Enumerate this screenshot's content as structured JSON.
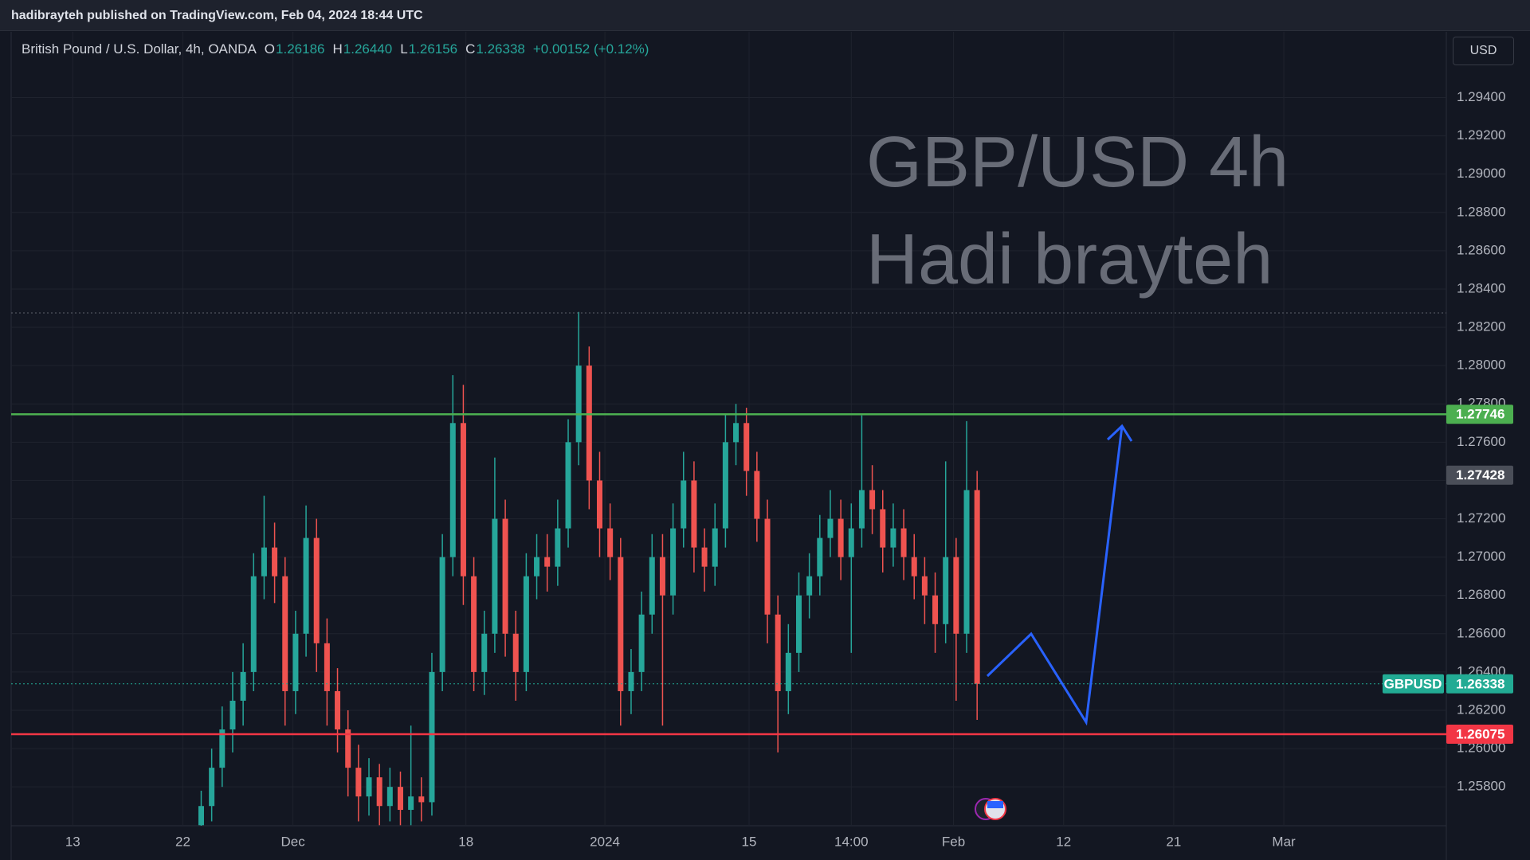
{
  "top_bar": {
    "text": "hadibrayteh published on TradingView.com, Feb 04, 2024 18:44 UTC"
  },
  "currency_button": "USD",
  "chart_data": {
    "type": "candlestick",
    "symbol": "British Pound / U.S. Dollar, 4h, OANDA",
    "ohlc_labels": [
      "O",
      "H",
      "L",
      "C"
    ],
    "ohlc_values": [
      1.26186,
      {
        "value": 1.2644,
        "label": "1.26440"
      },
      1.26156,
      1.26338
    ],
    "change": "+0.00152 (+0.12%)",
    "watermark": [
      "GBP/USD 4h",
      "Hadi brayteh"
    ],
    "x": [
      49,
      53,
      57,
      61,
      65,
      69,
      73,
      77,
      81,
      85,
      89,
      93,
      97,
      101,
      105,
      109,
      113,
      117,
      121,
      125,
      129,
      133,
      137,
      141,
      145,
      149,
      153,
      157,
      161,
      165,
      169,
      173,
      177,
      181,
      185,
      189,
      193,
      197,
      201,
      205,
      209,
      213,
      217,
      221,
      225,
      229,
      233,
      237,
      241,
      245,
      249,
      253,
      257,
      261,
      265,
      269,
      273,
      277,
      281,
      285,
      289,
      293,
      297,
      301,
      305,
      309,
      313,
      317,
      321,
      325,
      329,
      333,
      337,
      341,
      345
    ],
    "open": [
      1.256,
      1.257,
      1.259,
      1.261,
      1.2625,
      1.264,
      1.269,
      1.2705,
      1.269,
      1.263,
      1.266,
      1.271,
      1.2655,
      1.263,
      1.261,
      1.259,
      1.2575,
      1.2585,
      1.257,
      1.258,
      1.2568,
      1.2575,
      1.2572,
      1.264,
      1.27,
      1.277,
      1.269,
      1.264,
      1.266,
      1.272,
      1.266,
      1.264,
      1.269,
      1.27,
      1.2695,
      1.2715,
      1.276,
      1.28,
      1.274,
      1.2715,
      1.27,
      1.263,
      1.264,
      1.267,
      1.27,
      1.268,
      1.2715,
      1.274,
      1.2705,
      1.2695,
      1.2715,
      1.276,
      1.277,
      1.2745,
      1.272,
      1.267,
      1.263,
      1.265,
      1.268,
      1.269,
      1.271,
      1.272,
      1.27,
      1.2715,
      1.2735,
      1.2725,
      1.2705,
      1.2715,
      1.27,
      1.269,
      1.268,
      1.2665,
      1.27,
      1.266,
      1.2735
    ],
    "high": [
      1.2578,
      1.26,
      1.2622,
      1.264,
      1.2655,
      1.2702,
      1.2732,
      1.2718,
      1.27,
      1.2672,
      1.2727,
      1.272,
      1.2668,
      1.2642,
      1.262,
      1.2602,
      1.2595,
      1.2592,
      1.259,
      1.2588,
      1.2612,
      1.2585,
      1.265,
      1.2712,
      1.2795,
      1.279,
      1.27,
      1.2672,
      1.2752,
      1.273,
      1.2672,
      1.2702,
      1.2712,
      1.2712,
      1.273,
      1.2772,
      1.2828,
      1.281,
      1.2755,
      1.2728,
      1.271,
      1.2652,
      1.2682,
      1.2712,
      1.2712,
      1.2728,
      1.2755,
      1.275,
      1.2715,
      1.2728,
      1.2775,
      1.278,
      1.2778,
      1.2755,
      1.273,
      1.268,
      1.2665,
      1.2692,
      1.2702,
      1.2722,
      1.2735,
      1.273,
      1.2728,
      1.2774,
      1.2748,
      1.2735,
      1.2728,
      1.2725,
      1.2712,
      1.27,
      1.2692,
      1.275,
      1.271,
      1.2771,
      1.2745
    ],
    "low": [
      1.2552,
      1.2562,
      1.258,
      1.2598,
      1.2612,
      1.263,
      1.2678,
      1.2676,
      1.2612,
      1.2618,
      1.2648,
      1.264,
      1.2612,
      1.2598,
      1.2575,
      1.2562,
      1.2565,
      1.256,
      1.2562,
      1.256,
      1.256,
      1.2562,
      1.2565,
      1.263,
      1.269,
      1.2675,
      1.263,
      1.2628,
      1.265,
      1.2648,
      1.2625,
      1.263,
      1.2678,
      1.2682,
      1.2685,
      1.2705,
      1.2748,
      1.2725,
      1.27,
      1.2688,
      1.2612,
      1.2618,
      1.263,
      1.266,
      1.2612,
      1.267,
      1.2705,
      1.2692,
      1.2682,
      1.2685,
      1.2705,
      1.2748,
      1.2732,
      1.2708,
      1.2655,
      1.2598,
      1.2618,
      1.264,
      1.2668,
      1.268,
      1.27,
      1.2688,
      1.265,
      1.2705,
      1.2712,
      1.2692,
      1.2695,
      1.2688,
      1.2678,
      1.2665,
      1.265,
      1.2655,
      1.2625,
      1.265,
      1.2615
    ],
    "close": [
      1.257,
      1.259,
      1.261,
      1.2625,
      1.264,
      1.269,
      1.2705,
      1.269,
      1.263,
      1.266,
      1.271,
      1.2655,
      1.263,
      1.261,
      1.259,
      1.2575,
      1.2585,
      1.257,
      1.258,
      1.2568,
      1.2575,
      1.2572,
      1.264,
      1.27,
      1.277,
      1.269,
      1.264,
      1.266,
      1.272,
      1.266,
      1.264,
      1.269,
      1.27,
      1.2695,
      1.2715,
      1.276,
      1.28,
      1.274,
      1.2715,
      1.27,
      1.263,
      1.264,
      1.267,
      1.27,
      1.268,
      1.2715,
      1.274,
      1.2705,
      1.2695,
      1.2715,
      1.276,
      1.277,
      1.2745,
      1.272,
      1.267,
      1.263,
      1.265,
      1.268,
      1.269,
      1.271,
      1.272,
      1.27,
      1.2715,
      1.2735,
      1.2725,
      1.2705,
      1.2715,
      1.27,
      1.269,
      1.268,
      1.2665,
      1.27,
      1.266,
      1.2735,
      1.26338
    ],
    "up_color": "#26a69a",
    "down_color": "#ef5350",
    "xlim": [
      -23.5,
      524
    ],
    "xticks": [
      {
        "value": 0,
        "label": "13"
      },
      {
        "value": 42,
        "label": "22"
      },
      {
        "value": 84,
        "label": "Dec"
      },
      {
        "value": 150,
        "label": "18"
      },
      {
        "value": 203,
        "label": "2024"
      },
      {
        "value": 258,
        "label": "15"
      },
      {
        "value": 297,
        "label": "14:00"
      },
      {
        "value": 336,
        "label": "Feb"
      },
      {
        "value": 378,
        "label": "12"
      },
      {
        "value": 420,
        "label": "21"
      },
      {
        "value": 462,
        "label": "Mar"
      }
    ],
    "ylim": [
      1.25597,
      1.29743
    ],
    "yticks": [
      {
        "value": 1.258,
        "label": "1.25800"
      },
      {
        "value": 1.26,
        "label": "1.26000"
      },
      {
        "value": 1.262,
        "label": "1.26200"
      },
      {
        "value": 1.264,
        "label": "1.26400"
      },
      {
        "value": 1.266,
        "label": "1.26600"
      },
      {
        "value": 1.268,
        "label": "1.26800"
      },
      {
        "value": 1.27,
        "label": "1.27000"
      },
      {
        "value": 1.272,
        "label": "1.27200"
      },
      {
        "value": 1.274,
        "label": "1.27400"
      },
      {
        "value": 1.276,
        "label": "1.27600"
      },
      {
        "value": 1.278,
        "label": "1.27800"
      },
      {
        "value": 1.28,
        "label": "1.28000"
      },
      {
        "value": 1.282,
        "label": "1.28200"
      },
      {
        "value": 1.284,
        "label": "1.28400"
      },
      {
        "value": 1.286,
        "label": "1.28600"
      },
      {
        "value": 1.288,
        "label": "1.28800"
      },
      {
        "value": 1.29,
        "label": "1.29000"
      },
      {
        "value": 1.292,
        "label": "1.29200"
      },
      {
        "value": 1.294,
        "label": "1.29400"
      }
    ],
    "grid": true,
    "high_line": 1.28275,
    "marker": {
      "value": 1.27428,
      "color": "#4a4e58"
    },
    "levels": [
      {
        "value": 1.27746,
        "color": "#4caf50"
      },
      {
        "value": 1.26075,
        "color": "#f23645"
      }
    ],
    "price_line": {
      "name": "GBPUSD",
      "value": 1.26338,
      "color": "#22ab94"
    }
  }
}
